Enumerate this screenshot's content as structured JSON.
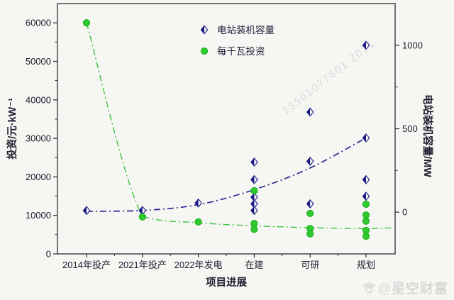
{
  "watermarks": {
    "diagonal": "13501077601 2021",
    "bottom_right": "@星空财富",
    "bottom_right_icon": "paw-icon"
  },
  "colors": {
    "capacity_blue": "#1a1a85",
    "capacity_line": "#2b2b92",
    "invest_green": "#2ecb2e",
    "invest_green_edge": "#17a517",
    "axis": "#2a2a33",
    "tick_text": "#1d1d30",
    "watermark_gray": "#d7d7d5"
  },
  "chart_data": {
    "type": "scatter",
    "title": "",
    "xlabel": "项目进展",
    "ylabel_left": "投资/元·kW⁻¹",
    "ylabel_right": "电站装机容量/MW",
    "categories": [
      "2014年投产",
      "2021年投产",
      "2022年发电",
      "在建",
      "可研",
      "规划"
    ],
    "left_axis": {
      "min": 0,
      "max": 65000,
      "major_ticks": [
        {
          "v": 0,
          "label": "0"
        },
        {
          "v": 10000,
          "label": "10000"
        },
        {
          "v": 20000,
          "label": "20000"
        },
        {
          "v": 30000,
          "label": "30000"
        },
        {
          "v": 40000,
          "label": "40000"
        },
        {
          "v": 50000,
          "label": "50000"
        },
        {
          "v": 60000,
          "label": "60000"
        }
      ],
      "minor_ticks": [
        5000,
        15000,
        25000,
        35000,
        45000,
        55000
      ]
    },
    "right_axis": {
      "min": -250,
      "max": 1250,
      "major_ticks": [
        {
          "v": 0,
          "label": "0"
        },
        {
          "v": 500,
          "label": "500"
        },
        {
          "v": 1000,
          "label": "1000"
        }
      ],
      "minor_ticks": [
        250,
        750
      ]
    },
    "legend": [
      {
        "label": "电站装机容量",
        "marker": "half-diamond"
      },
      {
        "label": "每千瓦投资",
        "marker": "circle"
      }
    ],
    "series": [
      {
        "name": "电站装机容量",
        "axis": "right",
        "marker": "half-diamond",
        "points": [
          {
            "category_index": 0,
            "value": 10
          },
          {
            "category_index": 1,
            "value": 10
          },
          {
            "category_index": 2,
            "value": 55
          },
          {
            "category_index": 3,
            "value": 300
          },
          {
            "category_index": 3,
            "value": 195
          },
          {
            "category_index": 3,
            "value": 90
          },
          {
            "category_index": 3,
            "value": 50
          },
          {
            "category_index": 3,
            "value": 10
          },
          {
            "category_index": 4,
            "value": 600
          },
          {
            "category_index": 4,
            "value": 305
          },
          {
            "category_index": 4,
            "value": 50
          },
          {
            "category_index": 5,
            "value": 1000
          },
          {
            "category_index": 5,
            "value": 445
          },
          {
            "category_index": 5,
            "value": 195
          },
          {
            "category_index": 5,
            "value": 95
          }
        ],
        "trend_values": [
          5,
          10,
          45,
          135,
          265,
          445
        ],
        "extend_to_edge": false
      },
      {
        "name": "每千瓦投资",
        "axis": "left",
        "marker": "circle",
        "points": [
          {
            "category_index": 0,
            "value": 60000
          },
          {
            "category_index": 1,
            "value": 9600
          },
          {
            "category_index": 2,
            "value": 8300
          },
          {
            "category_index": 3,
            "value": 16400
          },
          {
            "category_index": 3,
            "value": 7900
          },
          {
            "category_index": 3,
            "value": 6400
          },
          {
            "category_index": 4,
            "value": 10500
          },
          {
            "category_index": 4,
            "value": 6600
          },
          {
            "category_index": 4,
            "value": 5200
          },
          {
            "category_index": 5,
            "value": 12900
          },
          {
            "category_index": 5,
            "value": 10100
          },
          {
            "category_index": 5,
            "value": 8500
          },
          {
            "category_index": 5,
            "value": 6100
          },
          {
            "category_index": 5,
            "value": 4600
          }
        ],
        "trend_values": [
          60000,
          9800,
          8100,
          7300,
          6800,
          6600
        ],
        "extend_to_edge": true
      }
    ]
  }
}
